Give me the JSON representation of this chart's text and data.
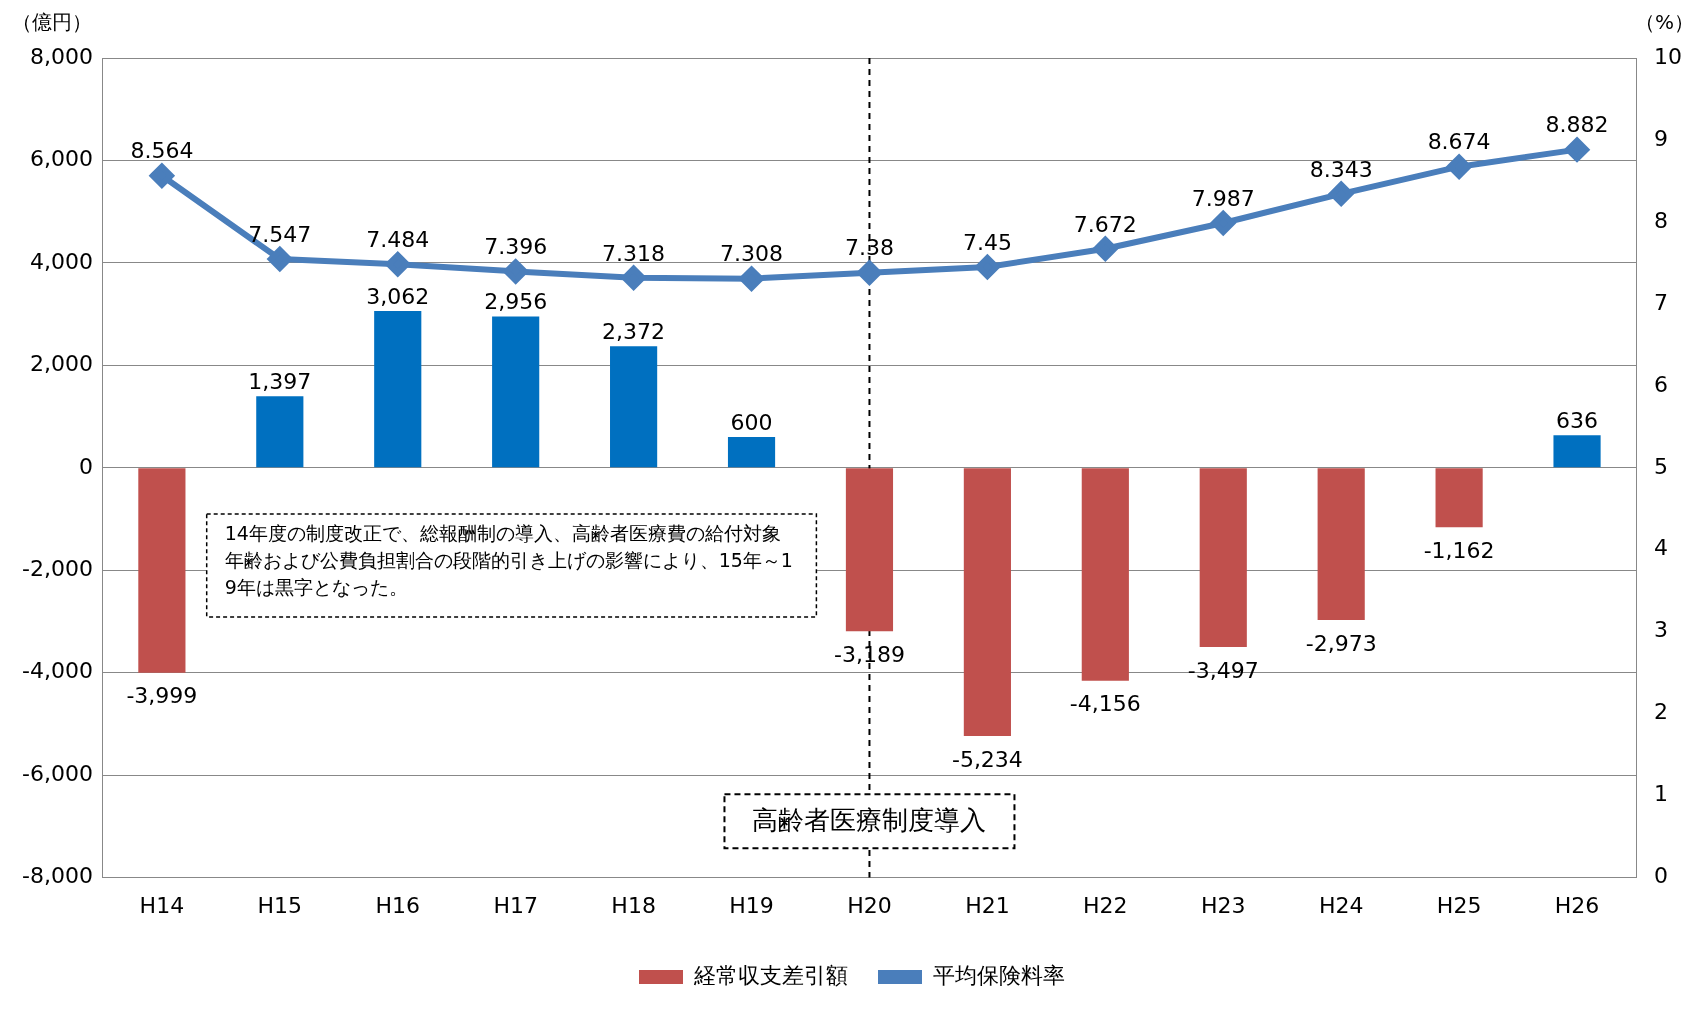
{
  "chart_data": {
    "type": "bar",
    "ylabel": "（億円）",
    "y2label": "（%）",
    "categories": [
      "H14",
      "H15",
      "H16",
      "H17",
      "H18",
      "H19",
      "H20",
      "H21",
      "H22",
      "H23",
      "H24",
      "H25",
      "H26"
    ],
    "series": [
      {
        "name": "経常収支差引額",
        "color": "#c0504d",
        "colors": [
          "#c0504d",
          "#0070c0",
          "#0070c0",
          "#0070c0",
          "#0070c0",
          "#0070c0",
          "#c0504d",
          "#c0504d",
          "#c0504d",
          "#c0504d",
          "#c0504d",
          "#c0504d",
          "#0070c0"
        ],
        "values": [
          -3999,
          1397,
          3062,
          2956,
          2372,
          600,
          -3189,
          -5234,
          -4156,
          -3497,
          -2973,
          -1162,
          636
        ],
        "value_labels": [
          "-3,999",
          "1,397",
          "3,062",
          "2,956",
          "2,372",
          "600",
          "-3,189",
          "-5,234",
          "-4,156",
          "-3,497",
          "-2,973",
          "-1,162",
          "636"
        ]
      },
      {
        "name": "平均保険料率",
        "type": "line",
        "axis": "y2",
        "color": "#4a7ebb",
        "marker": "diamond",
        "values": [
          8.564,
          7.547,
          7.484,
          7.396,
          7.318,
          7.308,
          7.38,
          7.45,
          7.672,
          7.987,
          8.343,
          8.674,
          8.882
        ],
        "value_labels": [
          "8.564",
          "7.547",
          "7.484",
          "7.396",
          "7.318",
          "7.308",
          "7.38",
          "7.45",
          "7.672",
          "7.987",
          "8.343",
          "8.674",
          "8.882"
        ]
      }
    ],
    "ylim": [
      -8000,
      8000
    ],
    "yticks": [
      {
        "value": -8000,
        "label": "-8,000"
      },
      {
        "value": -6000,
        "label": "-6,000"
      },
      {
        "value": -4000,
        "label": "-4,000"
      },
      {
        "value": -2000,
        "label": "-2,000"
      },
      0,
      {
        "value": 2000,
        "label": "2,000"
      },
      {
        "value": 4000,
        "label": "4,000"
      },
      {
        "value": 6000,
        "label": "6,000"
      },
      {
        "value": 8000,
        "label": "8,000"
      }
    ],
    "y2lim": [
      0,
      10
    ],
    "y2ticks": [
      0,
      1,
      2,
      3,
      4,
      5,
      6,
      7,
      8,
      9,
      10
    ],
    "grid": "y",
    "legend": "bottom",
    "ref_lines": [
      {
        "axis": "x",
        "value": "H20",
        "line_style": "dashed",
        "color": "#000000"
      }
    ],
    "annotations": [
      "14年度の制度改正で、総報酬制の導入、高齢者医療費の給付対象年齢および公費負担割合の段階的引き上げの影響により、15年～19年は黒字となった。",
      {
        "text": "高齢者医療制度導入",
        "x": "H20",
        "y": -6900
      }
    ]
  }
}
